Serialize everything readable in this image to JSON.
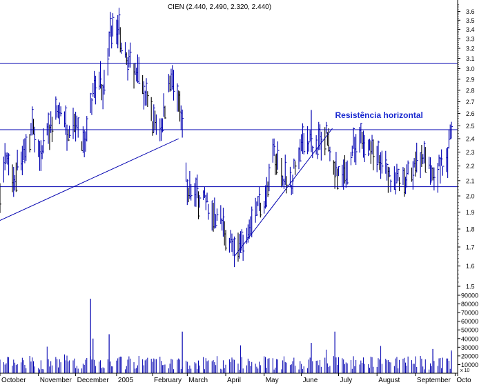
{
  "title": "CIEN (2.440, 2.490, 2.320, 2.440)",
  "colors": {
    "background": "#ffffff",
    "bars": "#0000b0",
    "highlight_bars": "#000000",
    "lines": "#0000b0",
    "annotation": "#1a2ad0",
    "axis": "#000000"
  },
  "chart_data": [
    {
      "type": "ohlc",
      "title": "CIEN (2.440, 2.490, 2.320, 2.440)",
      "y_scale": "log",
      "ylim": [
        1.5,
        3.7
      ],
      "y_ticks": [
        1.5,
        1.6,
        1.7,
        1.8,
        1.9,
        2.0,
        2.1,
        2.2,
        2.3,
        2.4,
        2.5,
        2.6,
        2.7,
        2.8,
        2.9,
        3.0,
        3.1,
        3.2,
        3.3,
        3.4,
        3.5,
        3.6
      ],
      "y_tick_labels": [
        "1.5",
        "1.6",
        "1.7",
        "1.8",
        "1.9",
        "2.0",
        "2.1",
        "2.2",
        "2.3",
        "2.4",
        "2.5",
        "2.6",
        "2.7",
        "2.8",
        "2.9",
        "3.0",
        "3.1",
        "3.2",
        "3.3",
        "3.4",
        "3.5",
        "3.6"
      ],
      "x_range": [
        "2004-10-01",
        "2005-10-05"
      ],
      "months": [
        {
          "label": "October",
          "date": "2004-10-01"
        },
        {
          "label": "November",
          "date": "2004-11-01"
        },
        {
          "label": "December",
          "date": "2004-12-01"
        },
        {
          "label": "2005",
          "date": "2005-01-03"
        },
        {
          "label": "February",
          "date": "2005-02-01"
        },
        {
          "label": "March",
          "date": "2005-03-01"
        },
        {
          "label": "April",
          "date": "2005-04-01"
        },
        {
          "label": "May",
          "date": "2005-05-02"
        },
        {
          "label": "June",
          "date": "2005-06-01"
        },
        {
          "label": "July",
          "date": "2005-07-01"
        },
        {
          "label": "August",
          "date": "2005-08-01"
        },
        {
          "label": "September",
          "date": "2005-09-01"
        },
        {
          "label": "Octo",
          "date": "2005-10-03"
        }
      ],
      "price_path": [
        [
          "2004-10-01",
          2.05
        ],
        [
          "2004-10-05",
          2.25
        ],
        [
          "2004-10-12",
          2.12
        ],
        [
          "2004-10-20",
          2.3
        ],
        [
          "2004-10-27",
          2.48
        ],
        [
          "2004-11-03",
          2.32
        ],
        [
          "2004-11-10",
          2.45
        ],
        [
          "2004-11-17",
          2.62
        ],
        [
          "2004-11-24",
          2.48
        ],
        [
          "2004-12-01",
          2.55
        ],
        [
          "2004-12-08",
          2.3
        ],
        [
          "2004-12-13",
          2.7
        ],
        [
          "2004-12-20",
          2.9
        ],
        [
          "2004-12-24",
          2.8
        ],
        [
          "2004-12-29",
          3.4
        ],
        [
          "2005-01-04",
          3.48
        ],
        [
          "2005-01-10",
          3.1
        ],
        [
          "2005-01-18",
          3.0
        ],
        [
          "2005-01-25",
          2.8
        ],
        [
          "2005-02-01",
          2.55
        ],
        [
          "2005-02-08",
          2.5
        ],
        [
          "2005-02-15",
          2.9
        ],
        [
          "2005-02-22",
          2.75
        ],
        [
          "2005-03-01",
          2.05
        ],
        [
          "2005-03-10",
          2.0
        ],
        [
          "2005-03-18",
          1.95
        ],
        [
          "2005-03-28",
          1.85
        ],
        [
          "2005-04-05",
          1.72
        ],
        [
          "2005-04-12",
          1.68
        ],
        [
          "2005-04-20",
          1.85
        ],
        [
          "2005-04-27",
          1.95
        ],
        [
          "2005-05-04",
          2.0
        ],
        [
          "2005-05-10",
          2.3
        ],
        [
          "2005-05-17",
          2.15
        ],
        [
          "2005-05-24",
          2.1
        ],
        [
          "2005-05-31",
          2.35
        ],
        [
          "2005-06-07",
          2.38
        ],
        [
          "2005-06-14",
          2.35
        ],
        [
          "2005-06-21",
          2.45
        ],
        [
          "2005-06-28",
          2.2
        ],
        [
          "2005-07-05",
          2.12
        ],
        [
          "2005-07-12",
          2.35
        ],
        [
          "2005-07-19",
          2.4
        ],
        [
          "2005-07-26",
          2.32
        ],
        [
          "2005-08-02",
          2.25
        ],
        [
          "2005-08-09",
          2.15
        ],
        [
          "2005-08-16",
          2.1
        ],
        [
          "2005-08-23",
          2.08
        ],
        [
          "2005-08-30",
          2.2
        ],
        [
          "2005-09-06",
          2.28
        ],
        [
          "2005-09-13",
          2.15
        ],
        [
          "2005-09-20",
          2.18
        ],
        [
          "2005-09-27",
          2.28
        ],
        [
          "2005-09-30",
          2.44
        ]
      ],
      "spikes": [
        {
          "date": "2005-06-09",
          "high": 2.63,
          "low": 2.3
        },
        {
          "date": "2005-01-04",
          "high": 3.5,
          "low": 3.2
        }
      ],
      "horizontal_lines": [
        3.05,
        2.47,
        2.06
      ],
      "trendlines": [
        {
          "x1": "2004-10-01",
          "y1": 1.85,
          "x2": "2005-02-22",
          "y2": 2.4
        },
        {
          "x1": "2005-04-08",
          "y1": 1.65,
          "x2": "2005-06-26",
          "y2": 2.48
        }
      ],
      "annotations": [
        {
          "text": "Resistência horizontal",
          "date": "2005-06-08",
          "y": 2.58
        }
      ]
    },
    {
      "type": "bar",
      "series": [
        {
          "values_label": "volume"
        }
      ],
      "ylim": [
        0,
        90000
      ],
      "y_ticks": [
        10000,
        20000,
        30000,
        40000,
        50000,
        60000,
        70000,
        80000,
        90000
      ],
      "y_tick_labels": [
        "10000",
        "20000",
        "30000",
        "40000",
        "50000",
        "60000",
        "70000",
        "80000",
        "90000"
      ],
      "y_unit_label": "x 10",
      "volume_spikes": [
        [
          "2004-12-13",
          86000
        ],
        [
          "2004-12-15",
          40000
        ],
        [
          "2004-12-28",
          45000
        ],
        [
          "2005-02-25",
          48000
        ],
        [
          "2005-06-09",
          35000
        ],
        [
          "2005-06-28",
          48000
        ],
        [
          "2005-09-15",
          28000
        ],
        [
          "2005-09-30",
          25000
        ]
      ]
    }
  ]
}
